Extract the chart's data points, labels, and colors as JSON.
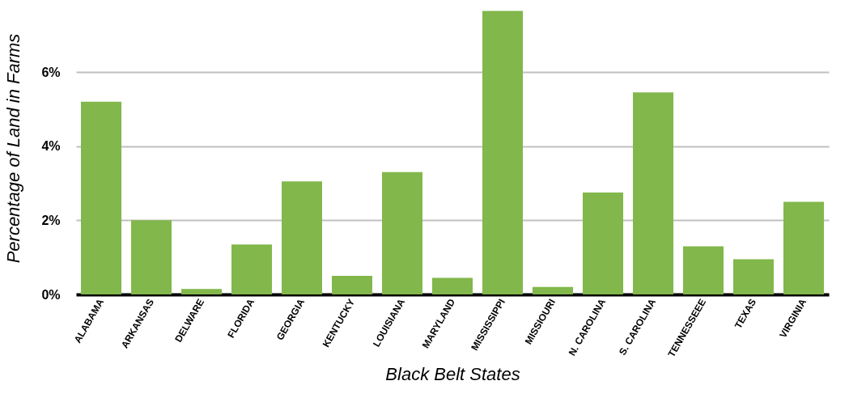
{
  "chart_data": {
    "type": "bar",
    "xlabel": "Black Belt States",
    "ylabel": "Percentage of Land in Farms",
    "categories": [
      "ALABAMA",
      "ARKANSAS",
      "DELWARE",
      "FLORIDA",
      "GEORGIA",
      "KENTUCKY",
      "LOUISIANA",
      "MARYLAND",
      "MISSISSIPPI",
      "MISSIOURI",
      "N. CAROLINA",
      "S. CAROLINA",
      "TENNESSEEE",
      "TEXAS",
      "VIRGINIA"
    ],
    "values": [
      5.2,
      2.0,
      0.15,
      1.35,
      3.05,
      0.5,
      3.3,
      0.45,
      7.65,
      0.2,
      2.75,
      5.45,
      1.3,
      0.95,
      2.5
    ],
    "color": "#82b74b",
    "ylim": [
      0,
      7.9
    ],
    "yticks": [
      {
        "value": 0,
        "label": "0%"
      },
      {
        "value": 2,
        "label": "2%"
      },
      {
        "value": 4,
        "label": "4%"
      },
      {
        "value": 6,
        "label": "6%"
      }
    ],
    "grid": "y"
  }
}
